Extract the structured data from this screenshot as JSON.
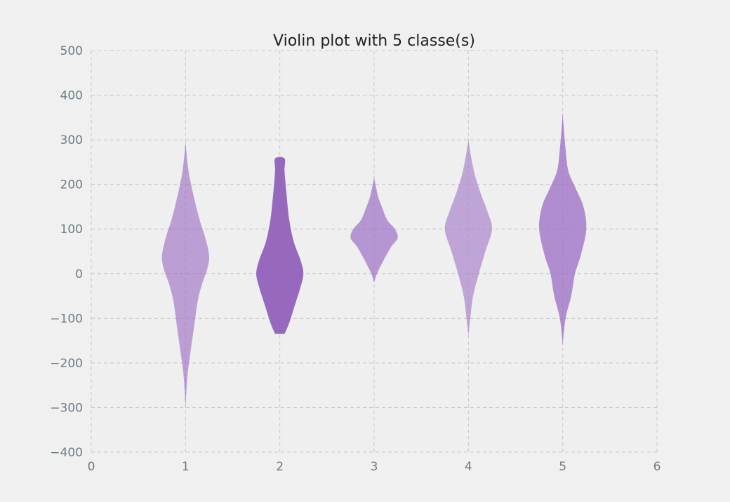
{
  "chart_data": {
    "type": "violin",
    "title": "Violin plot with 5 classe(s)",
    "xlabel": "",
    "ylabel": "",
    "xlim": [
      0,
      6
    ],
    "ylim": [
      -400,
      500
    ],
    "xticks": [
      0,
      1,
      2,
      3,
      4,
      5,
      6
    ],
    "yticks": [
      500,
      400,
      300,
      200,
      100,
      0,
      -100,
      -200,
      -300,
      -400
    ],
    "ytick_labels": [
      "500",
      "400",
      "300",
      "200",
      "100",
      "0",
      "−100",
      "−200",
      "−300",
      "−400"
    ],
    "xtick_labels": [
      "0",
      "1",
      "2",
      "3",
      "4",
      "5",
      "6"
    ],
    "grid": true,
    "violins": [
      {
        "position": 1,
        "color": "#9b6cc4",
        "opacity": 0.62,
        "profile": [
          [
            -300,
            0.0
          ],
          [
            -230,
            0.02
          ],
          [
            -180,
            0.05
          ],
          [
            -120,
            0.09
          ],
          [
            -60,
            0.13
          ],
          [
            -20,
            0.18
          ],
          [
            10,
            0.23
          ],
          [
            40,
            0.25
          ],
          [
            80,
            0.21
          ],
          [
            120,
            0.15
          ],
          [
            170,
            0.09
          ],
          [
            220,
            0.04
          ],
          [
            260,
            0.015
          ],
          [
            295,
            0.0
          ]
        ]
      },
      {
        "position": 2,
        "color": "#8c5ab8",
        "opacity": 0.9,
        "profile": [
          [
            -135,
            0.05
          ],
          [
            -110,
            0.1
          ],
          [
            -70,
            0.16
          ],
          [
            -30,
            0.22
          ],
          [
            0,
            0.25
          ],
          [
            30,
            0.22
          ],
          [
            70,
            0.15
          ],
          [
            120,
            0.1
          ],
          [
            180,
            0.07
          ],
          [
            230,
            0.05
          ],
          [
            258,
            0.05
          ]
        ]
      },
      {
        "position": 3,
        "color": "#9b6cc4",
        "opacity": 0.68,
        "profile": [
          [
            -20,
            0.0
          ],
          [
            0,
            0.03
          ],
          [
            30,
            0.1
          ],
          [
            60,
            0.18
          ],
          [
            80,
            0.25
          ],
          [
            100,
            0.22
          ],
          [
            120,
            0.14
          ],
          [
            145,
            0.09
          ],
          [
            175,
            0.04
          ],
          [
            215,
            0.0
          ]
        ]
      },
      {
        "position": 4,
        "color": "#ab88cc",
        "opacity": 0.72,
        "profile": [
          [
            -140,
            0.0
          ],
          [
            -100,
            0.02
          ],
          [
            -50,
            0.05
          ],
          [
            0,
            0.11
          ],
          [
            50,
            0.18
          ],
          [
            100,
            0.25
          ],
          [
            140,
            0.2
          ],
          [
            180,
            0.13
          ],
          [
            220,
            0.07
          ],
          [
            260,
            0.03
          ],
          [
            300,
            0.0
          ]
        ]
      },
      {
        "position": 5,
        "color": "#9b6cc4",
        "opacity": 0.75,
        "profile": [
          [
            -160,
            0.0
          ],
          [
            -100,
            0.03
          ],
          [
            -50,
            0.09
          ],
          [
            0,
            0.13
          ],
          [
            40,
            0.19
          ],
          [
            100,
            0.25
          ],
          [
            150,
            0.22
          ],
          [
            190,
            0.14
          ],
          [
            230,
            0.06
          ],
          [
            280,
            0.03
          ],
          [
            330,
            0.01
          ],
          [
            360,
            0.0
          ]
        ]
      }
    ]
  }
}
